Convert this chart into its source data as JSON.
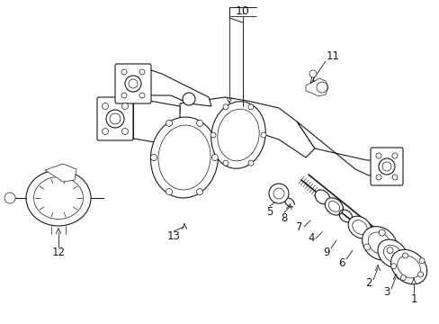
{
  "background_color": "#ffffff",
  "line_color": "#1a1a1a",
  "fig_width": 4.89,
  "fig_height": 3.6,
  "dpi": 100,
  "font_size": 8.5
}
